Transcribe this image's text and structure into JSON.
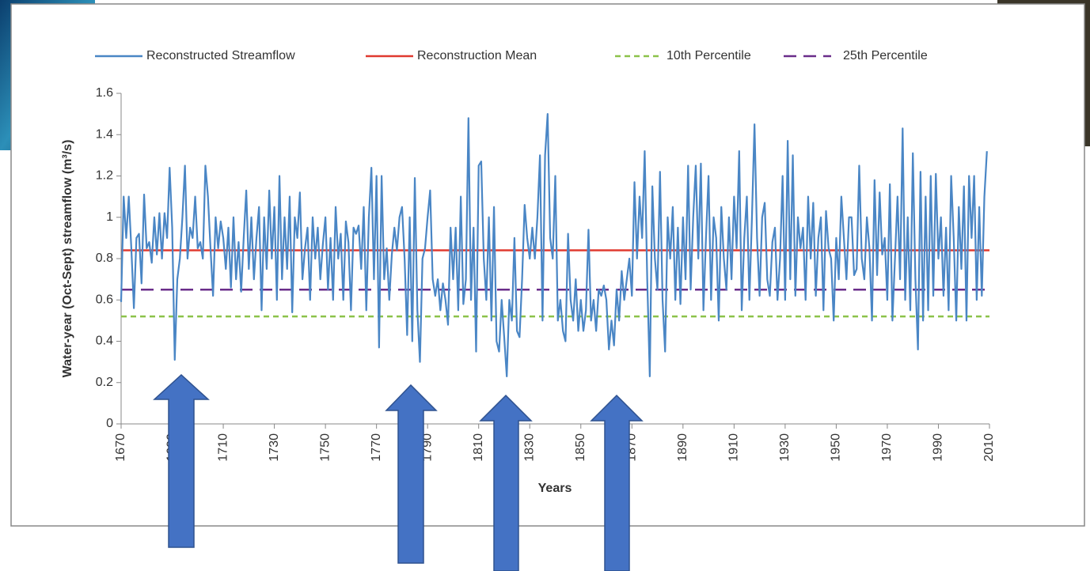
{
  "chart_data": {
    "type": "line",
    "y_label": "Water-year (Oct-Sept) streamflow (m³/s)",
    "x_label": "Years",
    "xlim": [
      1670,
      2010
    ],
    "xticks": [
      1670,
      1690,
      1710,
      1730,
      1750,
      1770,
      1790,
      1810,
      1830,
      1850,
      1870,
      1890,
      1910,
      1930,
      1950,
      1970,
      1990,
      2010
    ],
    "ylim": [
      0,
      1.6
    ],
    "yticks": [
      0,
      0.2,
      0.4,
      0.6,
      0.8,
      1,
      1.2,
      1.4,
      1.6
    ],
    "x": [
      1670,
      1671,
      1672,
      1673,
      1674,
      1675,
      1676,
      1677,
      1678,
      1679,
      1680,
      1681,
      1682,
      1683,
      1684,
      1685,
      1686,
      1687,
      1688,
      1689,
      1690,
      1691,
      1692,
      1693,
      1694,
      1695,
      1696,
      1697,
      1698,
      1699,
      1700,
      1701,
      1702,
      1703,
      1704,
      1705,
      1706,
      1707,
      1708,
      1709,
      1710,
      1711,
      1712,
      1713,
      1714,
      1715,
      1716,
      1717,
      1718,
      1719,
      1720,
      1721,
      1722,
      1723,
      1724,
      1725,
      1726,
      1727,
      1728,
      1729,
      1730,
      1731,
      1732,
      1733,
      1734,
      1735,
      1736,
      1737,
      1738,
      1739,
      1740,
      1741,
      1742,
      1743,
      1744,
      1745,
      1746,
      1747,
      1748,
      1749,
      1750,
      1751,
      1752,
      1753,
      1754,
      1755,
      1756,
      1757,
      1758,
      1759,
      1760,
      1761,
      1762,
      1763,
      1764,
      1765,
      1766,
      1767,
      1768,
      1769,
      1770,
      1771,
      1772,
      1773,
      1774,
      1775,
      1776,
      1777,
      1778,
      1779,
      1780,
      1781,
      1782,
      1783,
      1784,
      1785,
      1786,
      1787,
      1788,
      1789,
      1790,
      1791,
      1792,
      1793,
      1794,
      1795,
      1796,
      1797,
      1798,
      1799,
      1800,
      1801,
      1802,
      1803,
      1804,
      1805,
      1806,
      1807,
      1808,
      1809,
      1810,
      1811,
      1812,
      1813,
      1814,
      1815,
      1816,
      1817,
      1818,
      1819,
      1820,
      1821,
      1822,
      1823,
      1824,
      1825,
      1826,
      1827,
      1828,
      1829,
      1830,
      1831,
      1832,
      1833,
      1834,
      1835,
      1836,
      1837,
      1838,
      1839,
      1840,
      1841,
      1842,
      1843,
      1844,
      1845,
      1846,
      1847,
      1848,
      1849,
      1850,
      1851,
      1852,
      1853,
      1854,
      1855,
      1856,
      1857,
      1858,
      1859,
      1860,
      1861,
      1862,
      1863,
      1864,
      1865,
      1866,
      1867,
      1868,
      1869,
      1870,
      1871,
      1872,
      1873,
      1874,
      1875,
      1876,
      1877,
      1878,
      1879,
      1880,
      1881,
      1882,
      1883,
      1884,
      1885,
      1886,
      1887,
      1888,
      1889,
      1890,
      1891,
      1892,
      1893,
      1894,
      1895,
      1896,
      1897,
      1898,
      1899,
      1900,
      1901,
      1902,
      1903,
      1904,
      1905,
      1906,
      1907,
      1908,
      1909,
      1910,
      1911,
      1912,
      1913,
      1914,
      1915,
      1916,
      1917,
      1918,
      1919,
      1920,
      1921,
      1922,
      1923,
      1924,
      1925,
      1926,
      1927,
      1928,
      1929,
      1930,
      1931,
      1932,
      1933,
      1934,
      1935,
      1936,
      1937,
      1938,
      1939,
      1940,
      1941,
      1942,
      1943,
      1944,
      1945,
      1946,
      1947,
      1948,
      1949,
      1950,
      1951,
      1952,
      1953,
      1954,
      1955,
      1956,
      1957,
      1958,
      1959,
      1960,
      1961,
      1962,
      1963,
      1964,
      1965,
      1966,
      1967,
      1968,
      1969,
      1970,
      1971,
      1972,
      1973,
      1974,
      1975,
      1976,
      1977,
      1978,
      1979,
      1980,
      1981,
      1982,
      1983,
      1984,
      1985,
      1986,
      1987,
      1988,
      1989,
      1990,
      1991,
      1992,
      1993,
      1994,
      1995,
      1996,
      1997,
      1998,
      1999,
      2000,
      2001,
      2002,
      2003,
      2004,
      2005,
      2006,
      2007,
      2008,
      2009
    ],
    "series": [
      {
        "name": "Reconstructed Streamflow",
        "color": "#4a86c5",
        "values": [
          0.59,
          1.1,
          0.9,
          1.1,
          0.85,
          0.56,
          0.9,
          0.92,
          0.68,
          1.11,
          0.85,
          0.88,
          0.78,
          1.0,
          0.82,
          1.02,
          0.8,
          1.02,
          0.9,
          1.24,
          0.95,
          0.31,
          0.7,
          0.8,
          1.0,
          1.25,
          0.8,
          0.95,
          0.9,
          1.1,
          0.85,
          0.88,
          0.8,
          1.25,
          1.1,
          0.85,
          0.62,
          1.0,
          0.85,
          0.98,
          0.9,
          0.75,
          0.95,
          0.66,
          1.0,
          0.7,
          0.88,
          0.64,
          0.9,
          1.13,
          0.75,
          1.0,
          0.7,
          0.9,
          1.05,
          0.55,
          1.0,
          0.75,
          1.13,
          0.8,
          1.05,
          0.6,
          1.2,
          0.7,
          1.0,
          0.75,
          1.1,
          0.54,
          1.0,
          0.9,
          1.12,
          0.7,
          0.85,
          0.95,
          0.6,
          1.0,
          0.8,
          0.95,
          0.7,
          0.87,
          1.0,
          0.65,
          0.9,
          0.6,
          1.05,
          0.8,
          0.92,
          0.6,
          0.98,
          0.88,
          0.55,
          0.95,
          0.92,
          0.96,
          0.75,
          1.05,
          0.55,
          1.0,
          1.24,
          0.7,
          1.2,
          0.37,
          1.2,
          0.7,
          0.85,
          0.6,
          0.82,
          0.95,
          0.84,
          1.0,
          1.05,
          0.8,
          0.43,
          1.0,
          0.4,
          1.19,
          0.55,
          0.3,
          0.8,
          0.85,
          1.0,
          1.13,
          0.7,
          0.62,
          0.7,
          0.55,
          0.68,
          0.6,
          0.48,
          0.95,
          0.7,
          0.95,
          0.55,
          1.1,
          0.58,
          0.7,
          1.48,
          0.6,
          0.95,
          0.35,
          1.25,
          1.27,
          0.8,
          0.6,
          1.0,
          0.5,
          1.05,
          0.4,
          0.35,
          0.6,
          0.42,
          0.23,
          0.6,
          0.5,
          0.9,
          0.45,
          0.42,
          0.7,
          1.06,
          0.9,
          0.8,
          0.95,
          0.8,
          1.0,
          1.3,
          0.5,
          1.3,
          1.5,
          0.9,
          0.8,
          1.2,
          0.5,
          0.6,
          0.45,
          0.4,
          0.92,
          0.6,
          0.5,
          0.7,
          0.45,
          0.6,
          0.45,
          0.55,
          0.94,
          0.5,
          0.6,
          0.45,
          0.65,
          0.62,
          0.67,
          0.6,
          0.36,
          0.5,
          0.38,
          0.65,
          0.5,
          0.74,
          0.6,
          0.7,
          0.8,
          0.62,
          1.17,
          0.8,
          1.1,
          0.9,
          1.32,
          0.7,
          0.23,
          1.15,
          0.8,
          0.65,
          1.22,
          0.6,
          0.35,
          1.0,
          0.8,
          1.05,
          0.6,
          0.95,
          0.58,
          1.0,
          0.7,
          1.25,
          0.65,
          1.0,
          1.25,
          0.8,
          1.26,
          0.55,
          0.9,
          1.2,
          0.6,
          1.0,
          0.9,
          0.5,
          1.05,
          0.8,
          0.65,
          1.0,
          0.7,
          1.1,
          0.85,
          1.32,
          0.55,
          0.9,
          1.1,
          0.6,
          1.0,
          1.45,
          0.9,
          0.62,
          1.0,
          1.07,
          0.7,
          0.62,
          0.88,
          0.95,
          0.6,
          0.8,
          1.2,
          0.6,
          1.37,
          0.7,
          1.3,
          0.62,
          1.0,
          0.85,
          0.95,
          0.6,
          1.1,
          0.8,
          1.07,
          0.62,
          0.9,
          1.0,
          0.55,
          1.03,
          0.85,
          0.8,
          0.5,
          0.9,
          0.7,
          1.1,
          0.9,
          0.7,
          1.0,
          1.0,
          0.72,
          0.75,
          1.25,
          0.8,
          0.7,
          1.0,
          0.85,
          0.5,
          1.18,
          0.72,
          1.12,
          0.82,
          0.9,
          0.6,
          1.16,
          0.5,
          0.8,
          1.1,
          0.7,
          1.43,
          0.6,
          1.0,
          0.55,
          1.31,
          0.7,
          0.36,
          1.22,
          0.5,
          1.1,
          0.55,
          1.2,
          0.62,
          1.21,
          0.8,
          1.0,
          0.62,
          0.95,
          0.55,
          1.2,
          0.9,
          0.5,
          1.05,
          0.75,
          1.15,
          0.5,
          1.2,
          0.9,
          1.2,
          0.6,
          1.05,
          0.62,
          1.1,
          1.32
        ]
      }
    ],
    "reference_lines": [
      {
        "name": "Reconstruction Mean",
        "color": "#e03a30",
        "value": 0.84,
        "dash": "solid"
      },
      {
        "name": "10th Percentile",
        "color": "#8cc24a",
        "value": 0.52,
        "dash": "short"
      },
      {
        "name": "25th Percentile",
        "color": "#6a2d8a",
        "value": 0.65,
        "dash": "long"
      }
    ]
  }
}
